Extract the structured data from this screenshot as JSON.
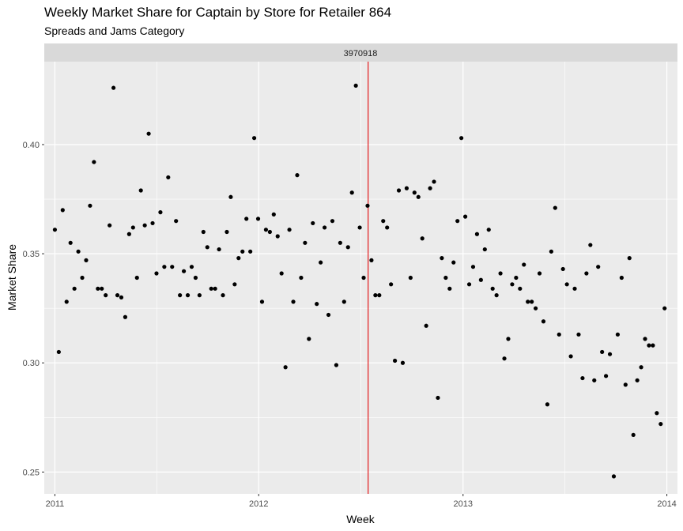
{
  "chart_data": {
    "type": "scatter",
    "title": "Weekly Market Share for Captain by Store for Retailer 864",
    "subtitle": "Spreads and Jams Category",
    "xlabel": "Week",
    "ylabel": "Market Share",
    "facet_label": "3970918",
    "xlim": [
      "2010-12-13",
      "2014-01-20"
    ],
    "ylim": [
      0.24,
      0.438
    ],
    "x_ticks": [
      "2011-01-01",
      "2012-01-01",
      "2013-01-01",
      "2014-01-01"
    ],
    "x_tick_labels": [
      "2011",
      "2012",
      "2013",
      "2014"
    ],
    "y_ticks": [
      0.25,
      0.3,
      0.35,
      0.4
    ],
    "y_tick_labels": [
      "0.25",
      "0.30",
      "0.35",
      "0.40"
    ],
    "vline": {
      "x": "2012-07-15",
      "color": "#e31a1c"
    },
    "grid": true,
    "points": [
      {
        "x": "2011-01-01",
        "y": 0.361
      },
      {
        "x": "2011-01-08",
        "y": 0.305
      },
      {
        "x": "2011-01-15",
        "y": 0.37
      },
      {
        "x": "2011-01-22",
        "y": 0.328
      },
      {
        "x": "2011-01-29",
        "y": 0.355
      },
      {
        "x": "2011-02-05",
        "y": 0.334
      },
      {
        "x": "2011-02-12",
        "y": 0.351
      },
      {
        "x": "2011-02-19",
        "y": 0.339
      },
      {
        "x": "2011-02-26",
        "y": 0.347
      },
      {
        "x": "2011-03-05",
        "y": 0.372
      },
      {
        "x": "2011-03-12",
        "y": 0.392
      },
      {
        "x": "2011-03-19",
        "y": 0.334
      },
      {
        "x": "2011-03-26",
        "y": 0.334
      },
      {
        "x": "2011-04-02",
        "y": 0.331
      },
      {
        "x": "2011-04-09",
        "y": 0.363
      },
      {
        "x": "2011-04-16",
        "y": 0.426
      },
      {
        "x": "2011-04-23",
        "y": 0.331
      },
      {
        "x": "2011-04-30",
        "y": 0.33
      },
      {
        "x": "2011-05-07",
        "y": 0.321
      },
      {
        "x": "2011-05-14",
        "y": 0.359
      },
      {
        "x": "2011-05-21",
        "y": 0.362
      },
      {
        "x": "2011-05-28",
        "y": 0.339
      },
      {
        "x": "2011-06-04",
        "y": 0.379
      },
      {
        "x": "2011-06-11",
        "y": 0.363
      },
      {
        "x": "2011-06-18",
        "y": 0.405
      },
      {
        "x": "2011-06-25",
        "y": 0.364
      },
      {
        "x": "2011-07-02",
        "y": 0.341
      },
      {
        "x": "2011-07-09",
        "y": 0.369
      },
      {
        "x": "2011-07-16",
        "y": 0.344
      },
      {
        "x": "2011-07-23",
        "y": 0.385
      },
      {
        "x": "2011-07-30",
        "y": 0.344
      },
      {
        "x": "2011-08-06",
        "y": 0.365
      },
      {
        "x": "2011-08-13",
        "y": 0.331
      },
      {
        "x": "2011-08-20",
        "y": 0.342
      },
      {
        "x": "2011-08-27",
        "y": 0.331
      },
      {
        "x": "2011-09-03",
        "y": 0.344
      },
      {
        "x": "2011-09-10",
        "y": 0.339
      },
      {
        "x": "2011-09-17",
        "y": 0.331
      },
      {
        "x": "2011-09-24",
        "y": 0.36
      },
      {
        "x": "2011-10-01",
        "y": 0.353
      },
      {
        "x": "2011-10-08",
        "y": 0.334
      },
      {
        "x": "2011-10-15",
        "y": 0.334
      },
      {
        "x": "2011-10-22",
        "y": 0.352
      },
      {
        "x": "2011-10-29",
        "y": 0.331
      },
      {
        "x": "2011-11-05",
        "y": 0.36
      },
      {
        "x": "2011-11-12",
        "y": 0.376
      },
      {
        "x": "2011-11-19",
        "y": 0.336
      },
      {
        "x": "2011-11-26",
        "y": 0.348
      },
      {
        "x": "2011-12-03",
        "y": 0.351
      },
      {
        "x": "2011-12-10",
        "y": 0.366
      },
      {
        "x": "2011-12-17",
        "y": 0.351
      },
      {
        "x": "2011-12-24",
        "y": 0.403
      },
      {
        "x": "2011-12-31",
        "y": 0.366
      },
      {
        "x": "2012-01-07",
        "y": 0.328
      },
      {
        "x": "2012-01-14",
        "y": 0.361
      },
      {
        "x": "2012-01-21",
        "y": 0.36
      },
      {
        "x": "2012-01-28",
        "y": 0.368
      },
      {
        "x": "2012-02-04",
        "y": 0.358
      },
      {
        "x": "2012-02-11",
        "y": 0.341
      },
      {
        "x": "2012-02-18",
        "y": 0.298
      },
      {
        "x": "2012-02-25",
        "y": 0.361
      },
      {
        "x": "2012-03-03",
        "y": 0.328
      },
      {
        "x": "2012-03-10",
        "y": 0.386
      },
      {
        "x": "2012-03-17",
        "y": 0.339
      },
      {
        "x": "2012-03-24",
        "y": 0.355
      },
      {
        "x": "2012-03-31",
        "y": 0.311
      },
      {
        "x": "2012-04-07",
        "y": 0.364
      },
      {
        "x": "2012-04-14",
        "y": 0.327
      },
      {
        "x": "2012-04-21",
        "y": 0.346
      },
      {
        "x": "2012-04-28",
        "y": 0.362
      },
      {
        "x": "2012-05-05",
        "y": 0.322
      },
      {
        "x": "2012-05-12",
        "y": 0.365
      },
      {
        "x": "2012-05-19",
        "y": 0.299
      },
      {
        "x": "2012-05-26",
        "y": 0.355
      },
      {
        "x": "2012-06-02",
        "y": 0.328
      },
      {
        "x": "2012-06-09",
        "y": 0.353
      },
      {
        "x": "2012-06-16",
        "y": 0.378
      },
      {
        "x": "2012-06-23",
        "y": 0.427
      },
      {
        "x": "2012-06-30",
        "y": 0.362
      },
      {
        "x": "2012-07-07",
        "y": 0.339
      },
      {
        "x": "2012-07-14",
        "y": 0.372
      },
      {
        "x": "2012-07-21",
        "y": 0.347
      },
      {
        "x": "2012-07-28",
        "y": 0.331
      },
      {
        "x": "2012-08-04",
        "y": 0.331
      },
      {
        "x": "2012-08-11",
        "y": 0.365
      },
      {
        "x": "2012-08-18",
        "y": 0.362
      },
      {
        "x": "2012-08-25",
        "y": 0.336
      },
      {
        "x": "2012-09-01",
        "y": 0.301
      },
      {
        "x": "2012-09-08",
        "y": 0.379
      },
      {
        "x": "2012-09-15",
        "y": 0.3
      },
      {
        "x": "2012-09-22",
        "y": 0.38
      },
      {
        "x": "2012-09-29",
        "y": 0.339
      },
      {
        "x": "2012-10-06",
        "y": 0.378
      },
      {
        "x": "2012-10-13",
        "y": 0.376
      },
      {
        "x": "2012-10-20",
        "y": 0.357
      },
      {
        "x": "2012-10-27",
        "y": 0.317
      },
      {
        "x": "2012-11-03",
        "y": 0.38
      },
      {
        "x": "2012-11-10",
        "y": 0.383
      },
      {
        "x": "2012-11-17",
        "y": 0.284
      },
      {
        "x": "2012-11-24",
        "y": 0.348
      },
      {
        "x": "2012-12-01",
        "y": 0.339
      },
      {
        "x": "2012-12-08",
        "y": 0.334
      },
      {
        "x": "2012-12-15",
        "y": 0.346
      },
      {
        "x": "2012-12-22",
        "y": 0.365
      },
      {
        "x": "2012-12-29",
        "y": 0.403
      },
      {
        "x": "2013-01-05",
        "y": 0.367
      },
      {
        "x": "2013-01-12",
        "y": 0.336
      },
      {
        "x": "2013-01-19",
        "y": 0.344
      },
      {
        "x": "2013-01-26",
        "y": 0.359
      },
      {
        "x": "2013-02-02",
        "y": 0.338
      },
      {
        "x": "2013-02-09",
        "y": 0.352
      },
      {
        "x": "2013-02-16",
        "y": 0.361
      },
      {
        "x": "2013-02-23",
        "y": 0.334
      },
      {
        "x": "2013-03-02",
        "y": 0.331
      },
      {
        "x": "2013-03-09",
        "y": 0.341
      },
      {
        "x": "2013-03-16",
        "y": 0.302
      },
      {
        "x": "2013-03-23",
        "y": 0.311
      },
      {
        "x": "2013-03-30",
        "y": 0.336
      },
      {
        "x": "2013-04-06",
        "y": 0.339
      },
      {
        "x": "2013-04-13",
        "y": 0.334
      },
      {
        "x": "2013-04-20",
        "y": 0.345
      },
      {
        "x": "2013-04-27",
        "y": 0.328
      },
      {
        "x": "2013-05-04",
        "y": 0.328
      },
      {
        "x": "2013-05-11",
        "y": 0.325
      },
      {
        "x": "2013-05-18",
        "y": 0.341
      },
      {
        "x": "2013-05-25",
        "y": 0.319
      },
      {
        "x": "2013-06-01",
        "y": 0.281
      },
      {
        "x": "2013-06-08",
        "y": 0.351
      },
      {
        "x": "2013-06-15",
        "y": 0.371
      },
      {
        "x": "2013-06-22",
        "y": 0.313
      },
      {
        "x": "2013-06-29",
        "y": 0.343
      },
      {
        "x": "2013-07-06",
        "y": 0.336
      },
      {
        "x": "2013-07-13",
        "y": 0.303
      },
      {
        "x": "2013-07-20",
        "y": 0.334
      },
      {
        "x": "2013-07-27",
        "y": 0.313
      },
      {
        "x": "2013-08-03",
        "y": 0.293
      },
      {
        "x": "2013-08-10",
        "y": 0.341
      },
      {
        "x": "2013-08-17",
        "y": 0.354
      },
      {
        "x": "2013-08-24",
        "y": 0.292
      },
      {
        "x": "2013-08-31",
        "y": 0.344
      },
      {
        "x": "2013-09-07",
        "y": 0.305
      },
      {
        "x": "2013-09-14",
        "y": 0.294
      },
      {
        "x": "2013-09-21",
        "y": 0.304
      },
      {
        "x": "2013-09-28",
        "y": 0.248
      },
      {
        "x": "2013-10-05",
        "y": 0.313
      },
      {
        "x": "2013-10-12",
        "y": 0.339
      },
      {
        "x": "2013-10-19",
        "y": 0.29
      },
      {
        "x": "2013-10-26",
        "y": 0.348
      },
      {
        "x": "2013-11-02",
        "y": 0.267
      },
      {
        "x": "2013-11-09",
        "y": 0.292
      },
      {
        "x": "2013-11-16",
        "y": 0.298
      },
      {
        "x": "2013-11-23",
        "y": 0.311
      },
      {
        "x": "2013-11-30",
        "y": 0.308
      },
      {
        "x": "2013-12-07",
        "y": 0.308
      },
      {
        "x": "2013-12-14",
        "y": 0.277
      },
      {
        "x": "2013-12-21",
        "y": 0.272
      },
      {
        "x": "2013-12-28",
        "y": 0.325
      }
    ]
  }
}
